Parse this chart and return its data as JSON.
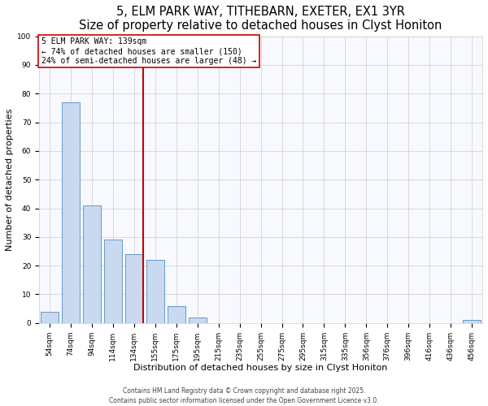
{
  "title": "5, ELM PARK WAY, TITHEBARN, EXETER, EX1 3YR",
  "subtitle": "Size of property relative to detached houses in Clyst Honiton",
  "xlabel": "Distribution of detached houses by size in Clyst Honiton",
  "ylabel": "Number of detached properties",
  "categories": [
    "54sqm",
    "74sqm",
    "94sqm",
    "114sqm",
    "134sqm",
    "155sqm",
    "175sqm",
    "195sqm",
    "215sqm",
    "235sqm",
    "255sqm",
    "275sqm",
    "295sqm",
    "315sqm",
    "335sqm",
    "356sqm",
    "376sqm",
    "396sqm",
    "416sqm",
    "436sqm",
    "456sqm"
  ],
  "values": [
    4,
    77,
    41,
    29,
    24,
    22,
    6,
    2,
    0,
    0,
    0,
    0,
    0,
    0,
    0,
    0,
    0,
    0,
    0,
    0,
    1
  ],
  "bar_color": "#c8d9f0",
  "bar_edge_color": "#6699cc",
  "vline_color": "#cc0000",
  "annotation_title": "5 ELM PARK WAY: 139sqm",
  "annotation_line1": "← 74% of detached houses are smaller (150)",
  "annotation_line2": "24% of semi-detached houses are larger (48) →",
  "ylim": [
    0,
    100
  ],
  "yticks": [
    0,
    10,
    20,
    30,
    40,
    50,
    60,
    70,
    80,
    90,
    100
  ],
  "footer_line1": "Contains HM Land Registry data © Crown copyright and database right 2025.",
  "footer_line2": "Contains public sector information licensed under the Open Government Licence v3.0.",
  "bg_color": "#ffffff",
  "plot_bg_color": "#f7f9ff",
  "title_fontsize": 10.5,
  "subtitle_fontsize": 9,
  "axis_label_fontsize": 8,
  "tick_fontsize": 6.5,
  "annotation_fontsize": 7,
  "footer_fontsize": 5.5
}
